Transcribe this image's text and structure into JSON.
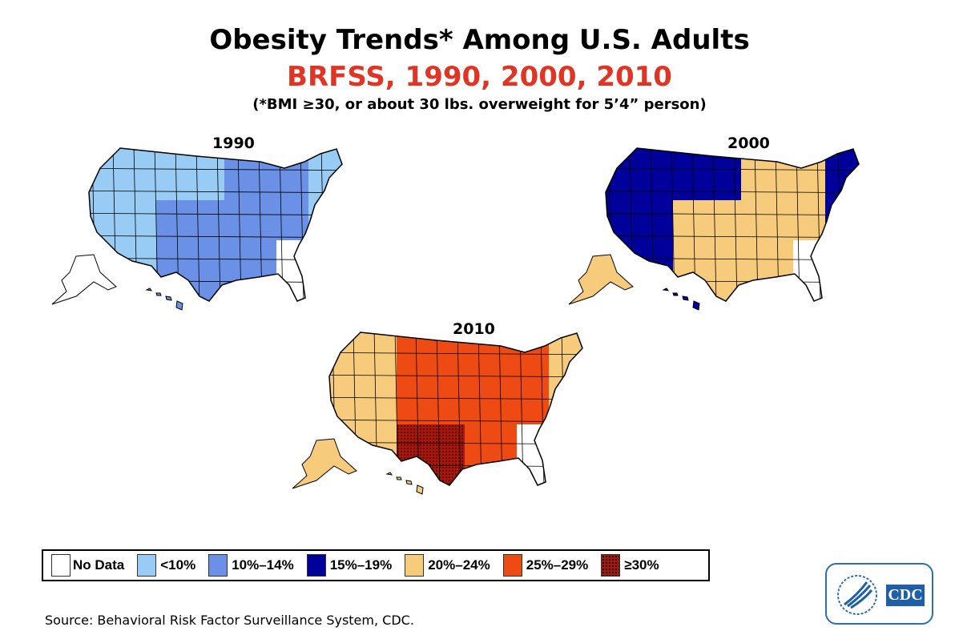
{
  "title": "Obesity Trends* Among U.S. Adults",
  "subtitle": "BRFSS, 1990, 2000, 2010",
  "footnote": "(*BMI ≥30, or about 30 lbs. overweight for 5’4” person)",
  "legend": [
    {
      "label": "No Data",
      "color": "#ffffff"
    },
    {
      "label": "<10%",
      "color": "#99ccf5"
    },
    {
      "label": "10%–14%",
      "color": "#6a91e6"
    },
    {
      "label": "15%–19%",
      "color": "#00009a"
    },
    {
      "label": "20%–24%",
      "color": "#f7cb7c"
    },
    {
      "label": "25%–29%",
      "color": "#ee4a14"
    },
    {
      "label": "≥30%",
      "color": "#a8160c",
      "pattern": "dotted"
    }
  ],
  "maps": [
    {
      "year": "1990",
      "regions": {
        "west": "<10%",
        "northcentral": "<10%",
        "central": "10%–14%",
        "south": "10%–14%",
        "east": "10%–14%",
        "northeast": "<10%",
        "alaska": "No Data",
        "hawaii": "10%–14%"
      }
    },
    {
      "year": "2000",
      "regions": {
        "west": "15%–19%",
        "northcentral": "15%–19%",
        "central": "20%–24%",
        "south": "20%–24%",
        "east": "20%–24%",
        "northeast": "15%–19%",
        "alaska": "20%–24%",
        "hawaii": "15%–19%"
      }
    },
    {
      "year": "2010",
      "regions": {
        "west": "20%–24%",
        "northcentral": "25%–29%",
        "central": "25%–29%",
        "south": "≥30%",
        "east": "25%–29%",
        "northeast": "20%–24%",
        "alaska": "20%–24%",
        "hawaii": "20%–24%"
      }
    }
  ],
  "source": "Source: Behavioral Risk Factor Surveillance System, CDC.",
  "logo": {
    "text": "CDC"
  }
}
